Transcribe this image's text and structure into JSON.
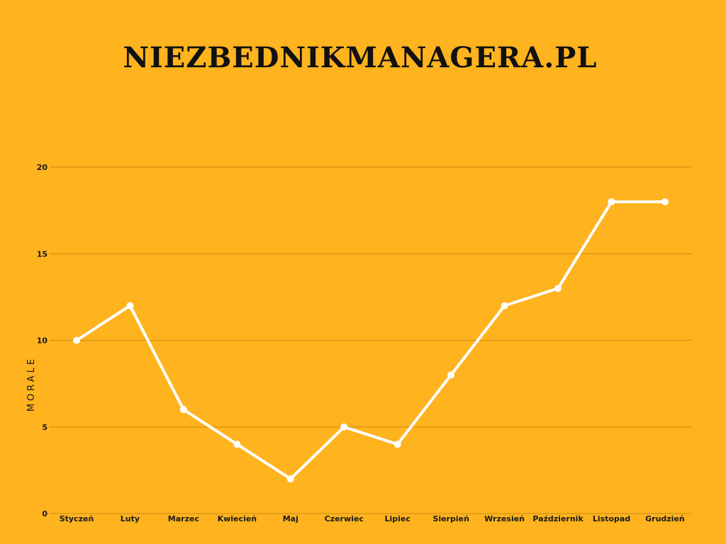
{
  "header": {
    "title": "NIEZBEDNIKMANAGERA.PL"
  },
  "chart_data": {
    "type": "line",
    "title": "NIEZBEDNIKMANAGERA.PL",
    "xlabel": "",
    "ylabel": "MORALE",
    "categories": [
      "Styczeń",
      "Luty",
      "Marzec",
      "Kwiecień",
      "Maj",
      "Czerwiec",
      "Lipiec",
      "Sierpień",
      "Wrzesień",
      "Październik",
      "Listopad",
      "Grudzień"
    ],
    "series": [
      {
        "values": [
          10,
          12,
          6,
          4,
          2,
          5,
          4,
          8,
          12,
          13,
          18,
          18
        ]
      }
    ],
    "ylim": [
      0,
      20
    ],
    "yticks": [
      0,
      5,
      10,
      15,
      20
    ],
    "grid": true,
    "legend": "none"
  },
  "colors": {
    "background": "#FFB31F",
    "line": "#FFFFFF",
    "grid": "#C98A12",
    "text": "#1a1a1a"
  }
}
